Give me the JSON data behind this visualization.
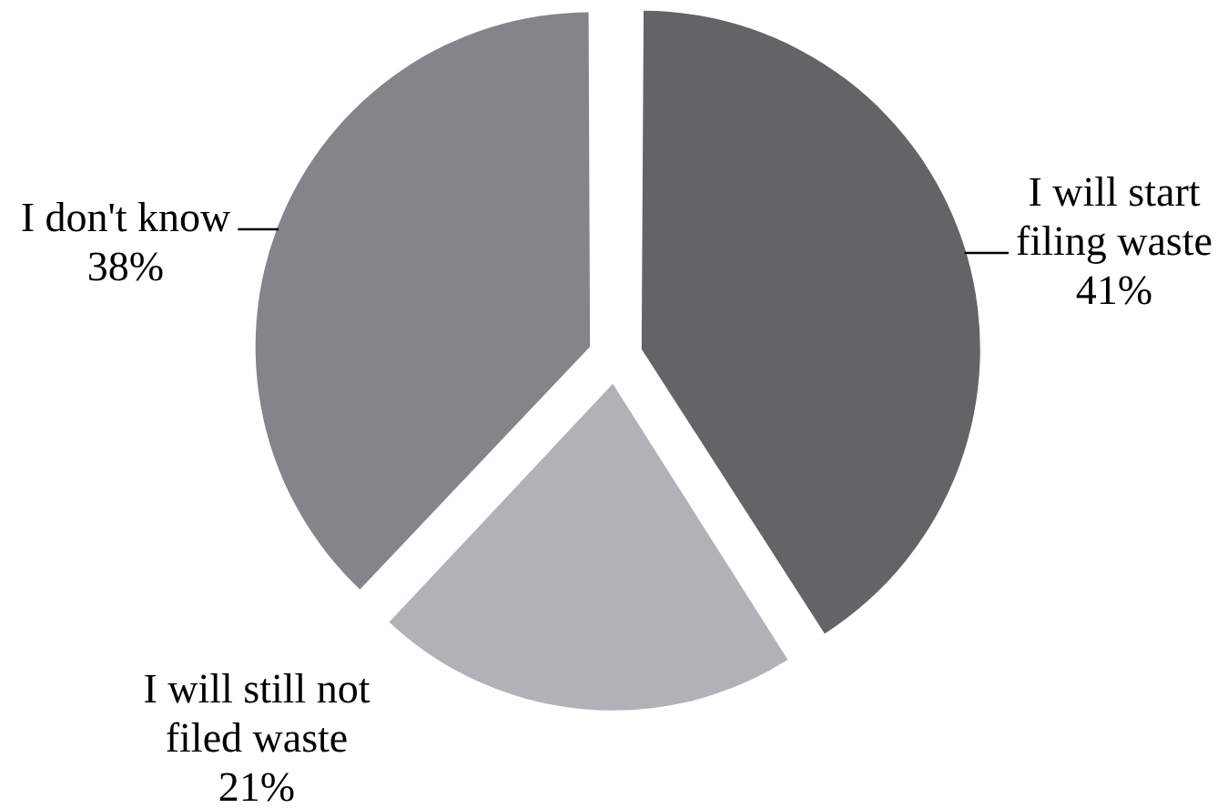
{
  "chart_data": {
    "type": "pie",
    "categories": [
      "I will start filing waste",
      "I will still not filed waste",
      "I don't know"
    ],
    "values": [
      41,
      21,
      38
    ],
    "colors": [
      "#646466",
      "#b1b2b6",
      "#848589"
    ],
    "value_labels": [
      "41%",
      "21%",
      "38%"
    ]
  }
}
